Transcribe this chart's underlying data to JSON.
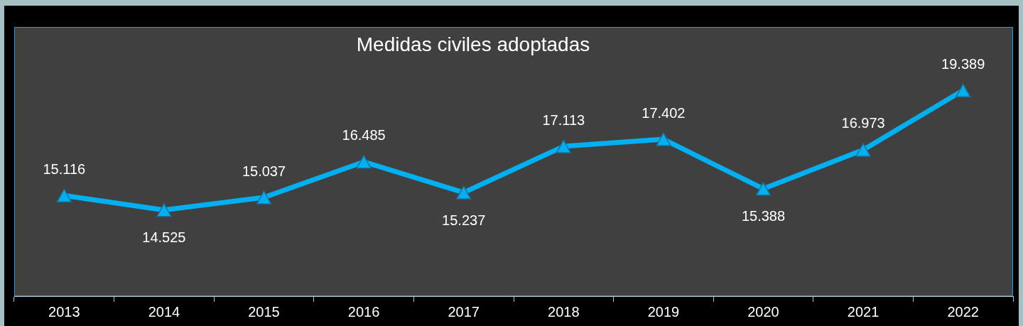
{
  "chart_data": {
    "type": "line",
    "title": "Medidas civiles adoptadas",
    "categories": [
      "2013",
      "2014",
      "2015",
      "2016",
      "2017",
      "2018",
      "2019",
      "2020",
      "2021",
      "2022"
    ],
    "series": [
      {
        "color": "#00b0f0",
        "values": [
          15116,
          14525,
          15037,
          16485,
          15237,
          17113,
          17402,
          15388,
          16973,
          19389
        ],
        "value_labels": [
          "15.116",
          "14.525",
          "15.037",
          "16.485",
          "15.237",
          "17.113",
          "17.402",
          "15.388",
          "16.973",
          "19.389"
        ]
      }
    ],
    "marker": "triangle",
    "line_style": "solid",
    "grid": false,
    "legend": false,
    "tick_labels": "x"
  }
}
